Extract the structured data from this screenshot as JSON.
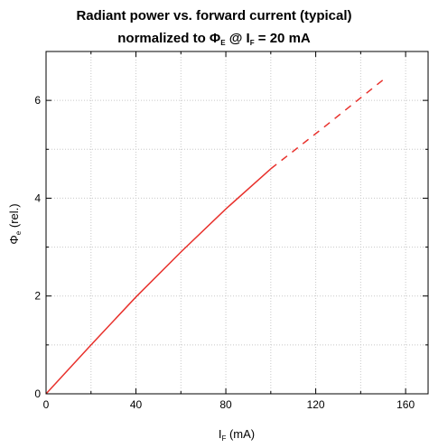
{
  "chart_data": {
    "type": "line",
    "title_line1": "Radiant power vs. forward current (typical)",
    "title_line2_prefix": "normalized to Φ",
    "title_line2_sub1": "E",
    "title_line2_mid": " @ I",
    "title_line2_sub2": "F",
    "title_line2_suffix": " = 20 mA",
    "xlabel_main": "I",
    "xlabel_sub": "F",
    "xlabel_unit": " (mA)",
    "ylabel_main": "Φ",
    "ylabel_sub": "e",
    "ylabel_unit": " (rel.)",
    "xlim": [
      0,
      170
    ],
    "ylim": [
      0,
      7
    ],
    "x_ticks": [
      0,
      40,
      80,
      120,
      160
    ],
    "y_ticks": [
      0,
      2,
      4,
      6
    ],
    "grid": true,
    "series": [
      {
        "style": "solid",
        "color": "#e8312c",
        "x": [
          0,
          20,
          40,
          60,
          80,
          100
        ],
        "y": [
          0,
          1.0,
          1.98,
          2.9,
          3.78,
          4.6
        ]
      },
      {
        "style": "dashed",
        "color": "#e8312c",
        "x": [
          100,
          125,
          150
        ],
        "y": [
          4.6,
          5.5,
          6.42
        ]
      }
    ]
  }
}
